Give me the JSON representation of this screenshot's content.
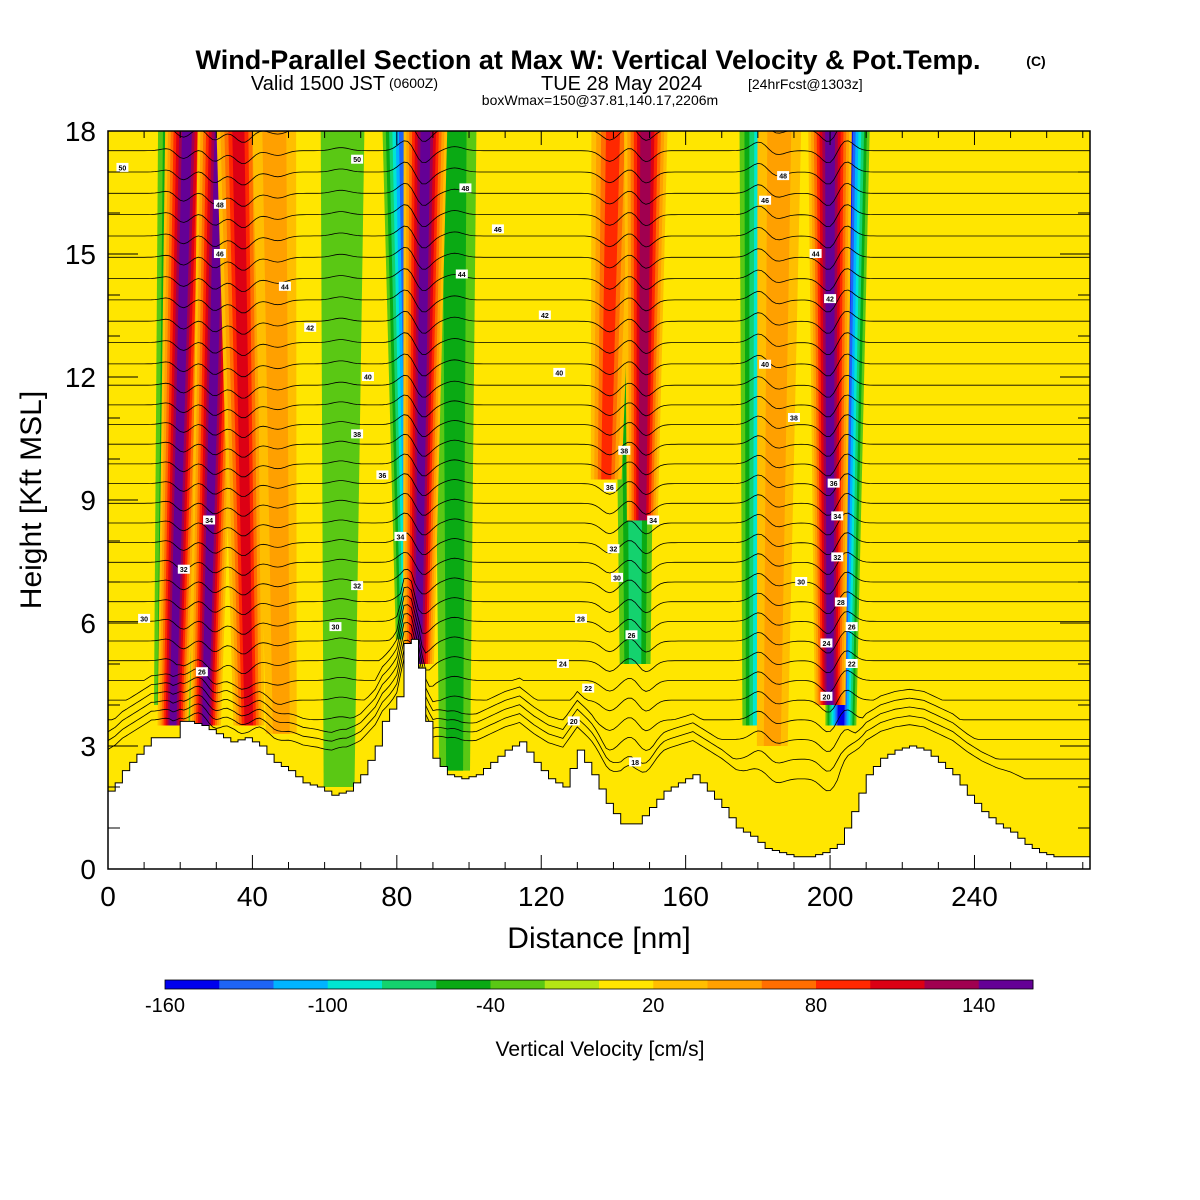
{
  "title": {
    "main": "Wind-Parallel Section at Max W: Vertical Velocity & Pot.Temp.",
    "mark": "(C)",
    "valid_prefix": "Valid 1500 JST",
    "valid_utc": "(0600Z)",
    "valid_date": "TUE 28 May 2024",
    "forecast": "[24hrFcst@1303z]",
    "box_info": "boxWmax=150@37.81,140.17,2206m"
  },
  "chart_data": {
    "type": "heatmap",
    "xlabel": "Distance [nm]",
    "ylabel": "Height [Kft MSL]",
    "xlim": [
      0,
      272
    ],
    "ylim": [
      0,
      18
    ],
    "x_ticks": [
      "0",
      "40",
      "80",
      "120",
      "160",
      "200",
      "240"
    ],
    "y_ticks": [
      "0",
      "3",
      "6",
      "9",
      "12",
      "15",
      "18"
    ],
    "colorbar": {
      "label": "Vertical Velocity [cm/s]",
      "tick_labels": [
        "-160",
        "-100",
        "-40",
        "20",
        "80",
        "140"
      ],
      "colors": [
        "#0000ee",
        "#1e64f5",
        "#00b4ff",
        "#00e6d2",
        "#14d26e",
        "#0aaa14",
        "#5ac814",
        "#b4e614",
        "#ffe600",
        "#ffbe00",
        "#ffa000",
        "#ff6e00",
        "#ff2800",
        "#dc0014",
        "#a00050",
        "#640096"
      ]
    },
    "terrain_profile_kft": {
      "x": [
        0,
        2,
        4,
        8,
        12,
        18,
        20,
        22,
        26,
        30,
        34,
        38,
        42,
        46,
        50,
        54,
        58,
        62,
        66,
        70,
        74,
        76,
        80,
        82,
        84,
        86,
        88,
        90,
        94,
        98,
        102,
        106,
        110,
        114,
        118,
        122,
        126,
        130,
        134,
        138,
        142,
        146,
        150,
        154,
        158,
        162,
        166,
        170,
        174,
        178,
        182,
        186,
        190,
        194,
        198,
        202,
        206,
        210,
        214,
        218,
        222,
        226,
        230,
        234,
        238,
        242,
        246,
        250,
        254,
        258,
        262,
        266,
        270,
        272
      ],
      "y": [
        1.9,
        2.1,
        2.4,
        2.8,
        3.2,
        3.2,
        3.6,
        3.6,
        3.5,
        3.3,
        3.1,
        3.2,
        3.0,
        2.6,
        2.4,
        2.1,
        2.0,
        1.8,
        1.9,
        2.3,
        3.0,
        3.6,
        4.2,
        5.5,
        5.6,
        4.9,
        3.6,
        2.7,
        2.3,
        2.2,
        2.3,
        2.6,
        2.9,
        3.1,
        2.6,
        2.2,
        2.0,
        2.9,
        2.3,
        1.6,
        1.1,
        1.1,
        1.5,
        1.9,
        2.1,
        2.3,
        1.9,
        1.5,
        1.0,
        0.8,
        0.5,
        0.4,
        0.3,
        0.3,
        0.4,
        0.6,
        1.4,
        2.3,
        2.7,
        2.9,
        3.0,
        2.9,
        2.6,
        2.3,
        1.8,
        1.4,
        1.1,
        0.9,
        0.6,
        0.4,
        0.3,
        0.3,
        0.3,
        0.3
      ]
    },
    "updraft_bands": [
      {
        "x_top": 22,
        "x_bottom": 18,
        "w": 150,
        "z_bottom": 3.5
      },
      {
        "x_top": 31,
        "x_bottom": 27,
        "w": 150,
        "z_bottom": 3.5
      },
      {
        "x_top": 36,
        "x_bottom": 39,
        "w": 110,
        "z_bottom": 3.5
      },
      {
        "x_top": 46,
        "x_bottom": 48,
        "w": 40,
        "z_bottom": 3.3
      },
      {
        "x_top": 88,
        "x_bottom": 86,
        "w": 150,
        "z_bottom": 5.0
      },
      {
        "x_top": 140,
        "x_bottom": 138,
        "w": 90,
        "z_bottom": 9.5
      },
      {
        "x_top": 149,
        "x_bottom": 148,
        "w": 120,
        "z_bottom": 8.5
      },
      {
        "x_top": 200,
        "x_bottom": 200,
        "w": 140,
        "z_bottom": 4.0
      },
      {
        "x_top": 186,
        "x_bottom": 184,
        "w": 40,
        "z_bottom": 3.0
      }
    ],
    "downdraft_bands": [
      {
        "x_top": 20,
        "x_bottom": 17,
        "w": -90,
        "z_bottom": 4.0
      },
      {
        "x_top": 28,
        "x_bottom": 26,
        "w": -60,
        "z_bottom": 3.5
      },
      {
        "x_top": 82,
        "x_bottom": 84,
        "w": -130,
        "z_bottom": 5.6
      },
      {
        "x_top": 146,
        "x_bottom": 146,
        "w": -70,
        "z_bottom": 5.0
      },
      {
        "x_top": 181,
        "x_bottom": 180,
        "w": -90,
        "z_bottom": 3.5
      },
      {
        "x_top": 205,
        "x_bottom": 203,
        "w": -140,
        "z_bottom": 3.5
      },
      {
        "x_top": 96,
        "x_bottom": 96,
        "w": -40,
        "z_bottom": 2.4
      },
      {
        "x_top": 65,
        "x_bottom": 64,
        "w": -30,
        "z_bottom": 2.0
      }
    ],
    "isentrope_labels": [
      {
        "x": 4,
        "z": 17.1,
        "text": "50"
      },
      {
        "x": 69,
        "z": 17.3,
        "text": "50"
      },
      {
        "x": 99,
        "z": 16.6,
        "text": "48"
      },
      {
        "x": 108,
        "z": 15.6,
        "text": "46"
      },
      {
        "x": 187,
        "z": 16.9,
        "text": "48"
      },
      {
        "x": 182,
        "z": 16.3,
        "text": "46"
      },
      {
        "x": 196,
        "z": 15.0,
        "text": "44"
      },
      {
        "x": 200,
        "z": 13.9,
        "text": "42"
      },
      {
        "x": 31,
        "z": 16.2,
        "text": "48"
      },
      {
        "x": 31,
        "z": 15.0,
        "text": "46"
      },
      {
        "x": 49,
        "z": 14.2,
        "text": "44"
      },
      {
        "x": 98,
        "z": 14.5,
        "text": "44"
      },
      {
        "x": 56,
        "z": 13.2,
        "text": "42"
      },
      {
        "x": 121,
        "z": 13.5,
        "text": "42"
      },
      {
        "x": 72,
        "z": 12.0,
        "text": "40"
      },
      {
        "x": 125,
        "z": 12.1,
        "text": "40"
      },
      {
        "x": 182,
        "z": 12.3,
        "text": "40"
      },
      {
        "x": 69,
        "z": 10.6,
        "text": "38"
      },
      {
        "x": 190,
        "z": 11.0,
        "text": "38"
      },
      {
        "x": 76,
        "z": 9.6,
        "text": "36"
      },
      {
        "x": 143,
        "z": 10.2,
        "text": "38"
      },
      {
        "x": 139,
        "z": 9.3,
        "text": "36"
      },
      {
        "x": 28,
        "z": 8.5,
        "text": "34"
      },
      {
        "x": 81,
        "z": 8.1,
        "text": "34"
      },
      {
        "x": 151,
        "z": 8.5,
        "text": "34"
      },
      {
        "x": 201,
        "z": 9.4,
        "text": "36"
      },
      {
        "x": 202,
        "z": 8.6,
        "text": "34"
      },
      {
        "x": 140,
        "z": 7.8,
        "text": "32"
      },
      {
        "x": 202,
        "z": 7.6,
        "text": "32"
      },
      {
        "x": 21,
        "z": 7.3,
        "text": "32"
      },
      {
        "x": 69,
        "z": 6.9,
        "text": "32"
      },
      {
        "x": 141,
        "z": 7.1,
        "text": "30"
      },
      {
        "x": 192,
        "z": 7.0,
        "text": "30"
      },
      {
        "x": 10,
        "z": 6.1,
        "text": "30"
      },
      {
        "x": 63,
        "z": 5.9,
        "text": "30"
      },
      {
        "x": 131,
        "z": 6.1,
        "text": "28"
      },
      {
        "x": 203,
        "z": 6.5,
        "text": "28"
      },
      {
        "x": 145,
        "z": 5.7,
        "text": "26"
      },
      {
        "x": 206,
        "z": 5.9,
        "text": "26"
      },
      {
        "x": 199,
        "z": 5.5,
        "text": "24"
      },
      {
        "x": 126,
        "z": 5.0,
        "text": "24"
      },
      {
        "x": 206,
        "z": 5.0,
        "text": "22"
      },
      {
        "x": 26,
        "z": 4.8,
        "text": "26"
      },
      {
        "x": 133,
        "z": 4.4,
        "text": "22"
      },
      {
        "x": 199,
        "z": 4.2,
        "text": "20"
      },
      {
        "x": 129,
        "z": 3.6,
        "text": "20"
      },
      {
        "x": 146,
        "z": 2.6,
        "text": "18"
      }
    ]
  }
}
